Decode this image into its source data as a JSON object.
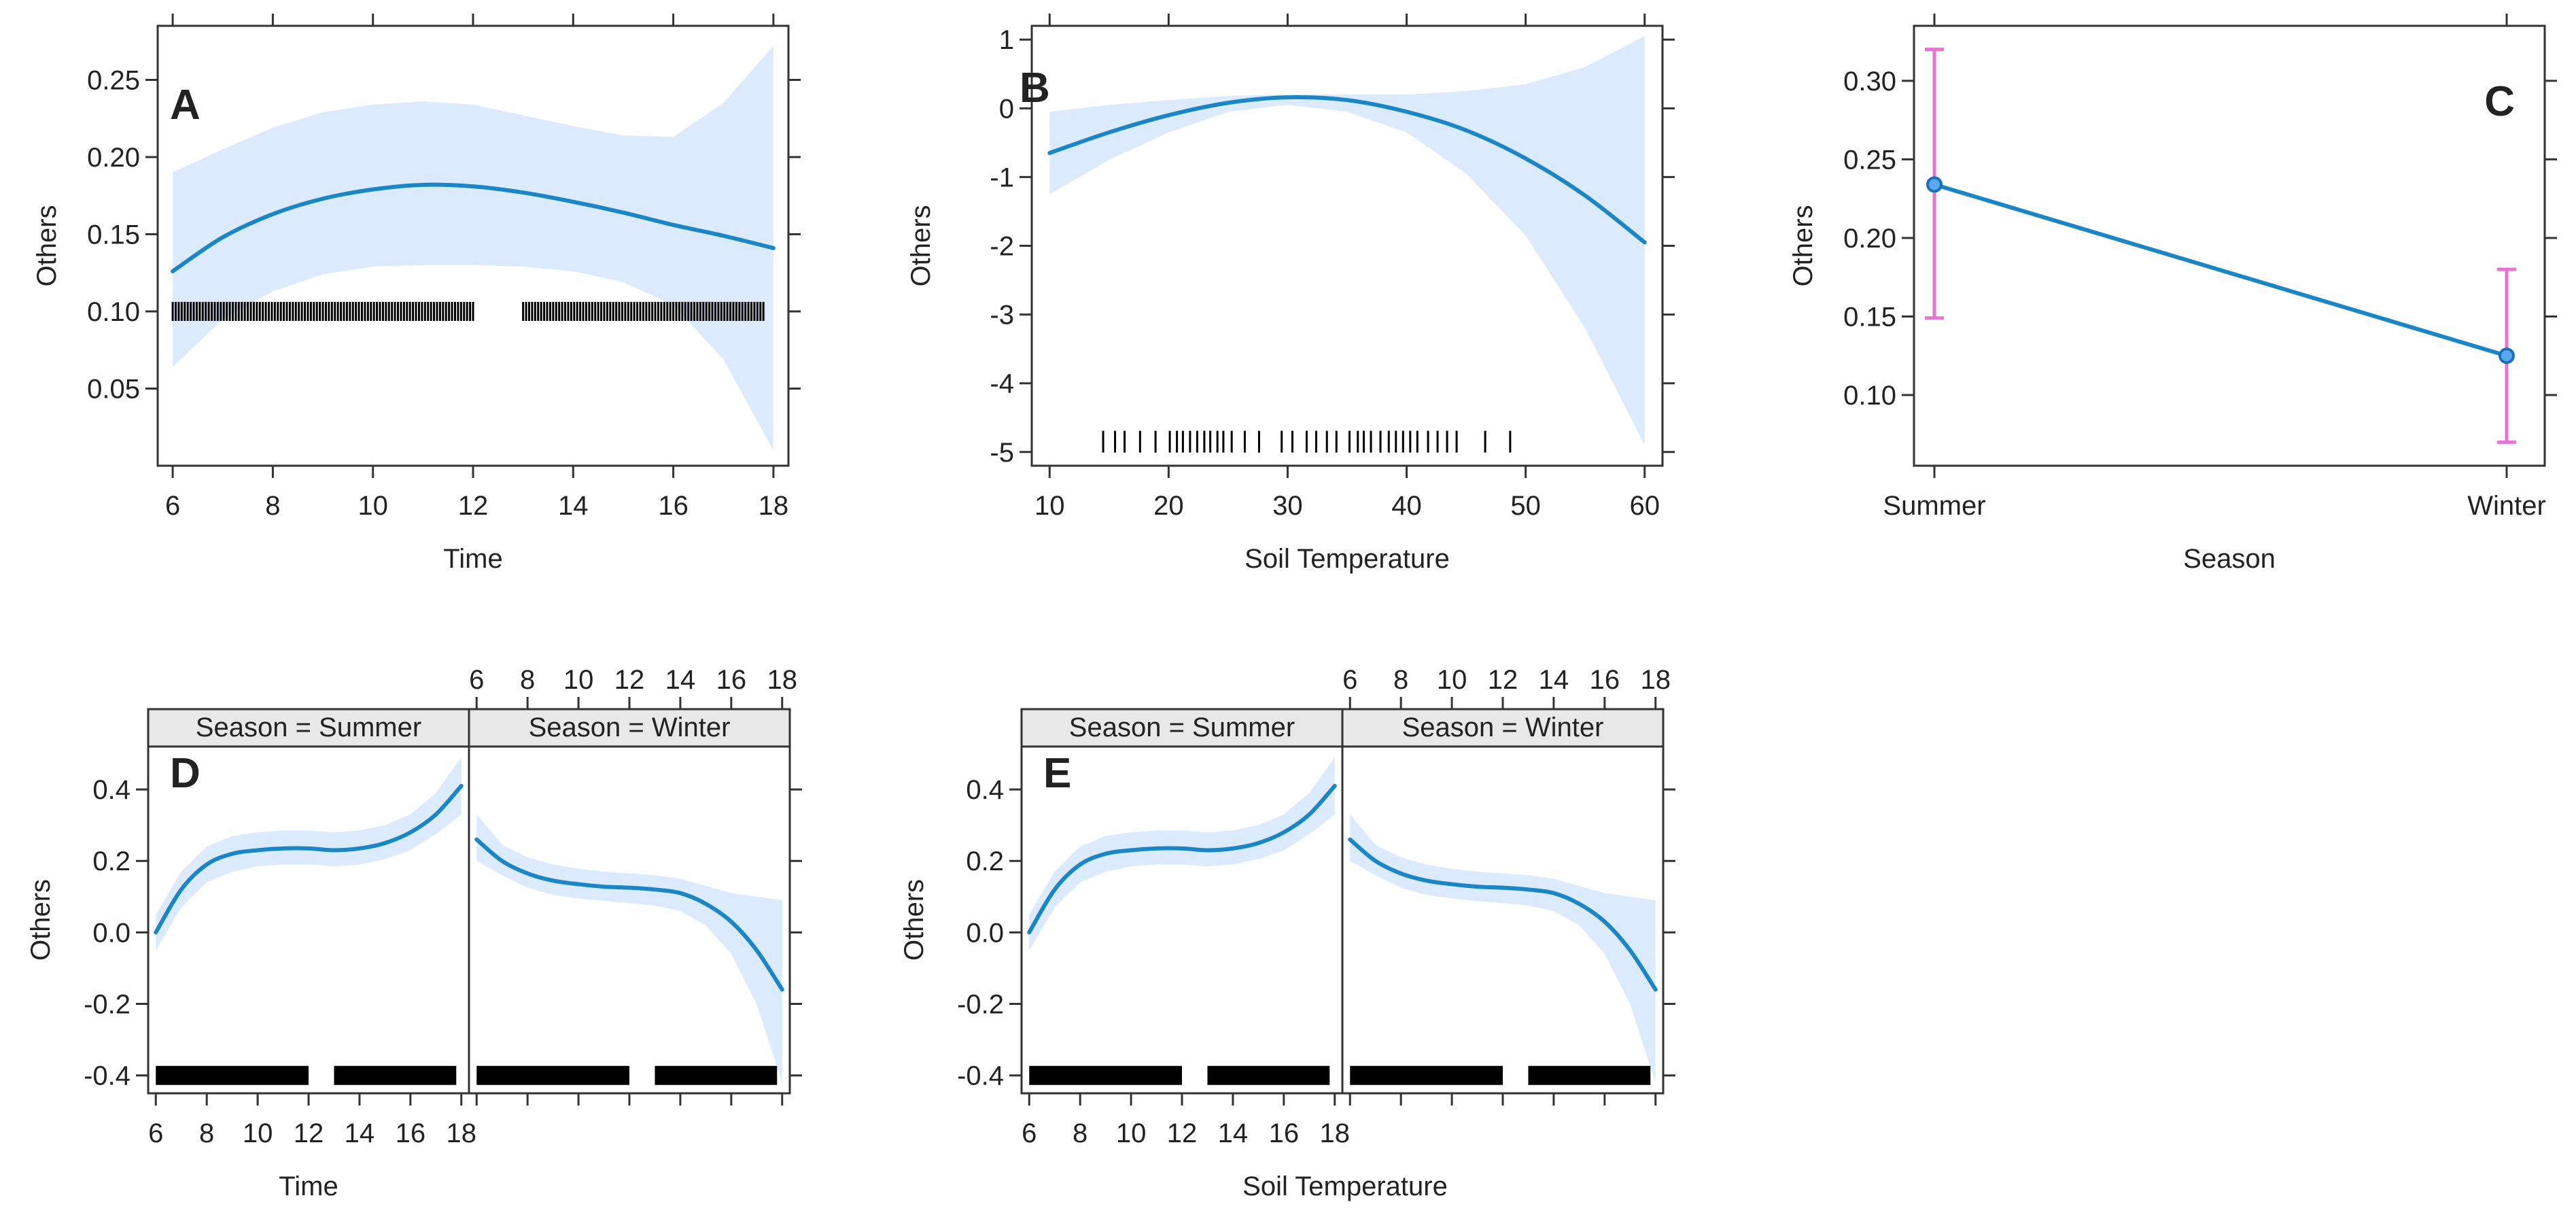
{
  "chart_data": [
    {
      "id": "A",
      "panel_label": "A",
      "type": "line",
      "xlabel": "Time",
      "ylabel": "Others",
      "xlim": [
        5.7,
        18.3
      ],
      "ylim": [
        0.0,
        0.285
      ],
      "xticks": [
        6,
        8,
        10,
        12,
        14,
        16,
        18
      ],
      "yticks": [
        0.05,
        0.1,
        0.15,
        0.2,
        0.25
      ],
      "ytick_labels": [
        "0.05",
        "0.10",
        "0.15",
        "0.20",
        "0.25"
      ],
      "x": [
        6,
        7,
        8,
        9,
        10,
        11,
        12,
        13,
        14,
        15,
        16,
        17,
        18
      ],
      "y": [
        0.126,
        0.148,
        0.163,
        0.173,
        0.179,
        0.182,
        0.181,
        0.177,
        0.171,
        0.164,
        0.156,
        0.149,
        0.141
      ],
      "lower": [
        0.064,
        0.095,
        0.113,
        0.124,
        0.129,
        0.13,
        0.13,
        0.129,
        0.126,
        0.119,
        0.104,
        0.069,
        0.01
      ],
      "upper": [
        0.19,
        0.205,
        0.219,
        0.229,
        0.234,
        0.236,
        0.234,
        0.227,
        0.22,
        0.214,
        0.213,
        0.235,
        0.272
      ],
      "rug_segments": [
        [
          6.0,
          12.0,
          0.1
        ],
        [
          13.0,
          17.8,
          0.1
        ]
      ]
    },
    {
      "id": "B",
      "panel_label": "B",
      "type": "line",
      "xlabel": "Soil Temperature",
      "ylabel": "Others",
      "xlim": [
        8.5,
        61.5
      ],
      "ylim": [
        -5.2,
        1.2
      ],
      "xticks": [
        10,
        20,
        30,
        40,
        50,
        60
      ],
      "yticks": [
        -5,
        -4,
        -3,
        -2,
        -1,
        0,
        1
      ],
      "ytick_labels": [
        "-5",
        "-4",
        "-3",
        "-2",
        "-1",
        "0",
        "1"
      ],
      "x": [
        10,
        15,
        20,
        25,
        30,
        35,
        40,
        45,
        50,
        55,
        60
      ],
      "y": [
        -0.65,
        -0.35,
        -0.1,
        0.08,
        0.16,
        0.12,
        -0.05,
        -0.32,
        -0.73,
        -1.27,
        -1.95
      ],
      "lower": [
        -1.25,
        -0.75,
        -0.35,
        -0.05,
        0.05,
        -0.05,
        -0.35,
        -0.95,
        -1.85,
        -3.2,
        -4.9
      ],
      "upper": [
        -0.05,
        0.05,
        0.12,
        0.18,
        0.2,
        0.2,
        0.2,
        0.25,
        0.35,
        0.6,
        1.05
      ],
      "rug": [
        14.5,
        15.5,
        16.3,
        17.6,
        18.9,
        20.1,
        20.7,
        21.2,
        21.8,
        22.4,
        23.0,
        23.5,
        24.1,
        24.6,
        25.3,
        26.4,
        27.6,
        29.5,
        30.4,
        31.6,
        32.4,
        33.3,
        34.1,
        35.2,
        35.9,
        36.4,
        37.0,
        37.8,
        38.5,
        39.1,
        39.7,
        40.3,
        40.9,
        41.8,
        42.6,
        43.4,
        44.2,
        46.6,
        48.7
      ],
      "rug_y": -4.85
    },
    {
      "id": "C",
      "panel_label": "C",
      "type": "line",
      "xlabel": "Season",
      "ylabel": "Others",
      "categories": [
        "Summer",
        "Winter"
      ],
      "values": [
        0.234,
        0.125
      ],
      "lower": [
        0.149,
        0.07
      ],
      "upper": [
        0.32,
        0.18
      ],
      "ylim": [
        0.055,
        0.335
      ],
      "yticks": [
        0.1,
        0.15,
        0.2,
        0.25,
        0.3
      ],
      "ytick_labels": [
        "0.10",
        "0.15",
        "0.20",
        "0.25",
        "0.30"
      ]
    },
    {
      "id": "D",
      "panel_label": "D",
      "type": "line",
      "xlabel": "Time",
      "ylabel": "Others",
      "xlim": [
        5.7,
        18.3
      ],
      "ylim": [
        -0.45,
        0.52
      ],
      "xticks": [
        6,
        8,
        10,
        12,
        14,
        16,
        18
      ],
      "yticks": [
        -0.4,
        -0.2,
        0.0,
        0.2,
        0.4
      ],
      "ytick_labels": [
        "-0.4",
        "-0.2",
        "0.0",
        "0.2",
        "0.4"
      ],
      "panels": [
        {
          "strip": "Season = Summer",
          "x": [
            6,
            7,
            8,
            9,
            10,
            11,
            12,
            13,
            14,
            15,
            16,
            17,
            18
          ],
          "y": [
            0.0,
            0.12,
            0.19,
            0.22,
            0.23,
            0.235,
            0.235,
            0.23,
            0.235,
            0.25,
            0.28,
            0.33,
            0.41
          ],
          "lower": [
            -0.05,
            0.07,
            0.14,
            0.17,
            0.185,
            0.19,
            0.19,
            0.185,
            0.19,
            0.205,
            0.23,
            0.275,
            0.33
          ],
          "upper": [
            0.05,
            0.17,
            0.24,
            0.27,
            0.28,
            0.285,
            0.285,
            0.28,
            0.285,
            0.3,
            0.33,
            0.39,
            0.49
          ],
          "rug_segments": [
            [
              6.0,
              12.0,
              -0.4
            ],
            [
              13.0,
              17.8,
              -0.4
            ]
          ]
        },
        {
          "strip": "Season = Winter",
          "x": [
            6,
            7,
            8,
            9,
            10,
            11,
            12,
            13,
            14,
            15,
            16,
            17,
            18
          ],
          "y": [
            0.26,
            0.2,
            0.165,
            0.145,
            0.135,
            0.128,
            0.125,
            0.12,
            0.11,
            0.08,
            0.03,
            -0.05,
            -0.16
          ],
          "lower": [
            0.2,
            0.16,
            0.125,
            0.105,
            0.095,
            0.088,
            0.082,
            0.075,
            0.06,
            0.02,
            -0.06,
            -0.2,
            -0.42
          ],
          "upper": [
            0.33,
            0.245,
            0.21,
            0.19,
            0.178,
            0.17,
            0.165,
            0.16,
            0.15,
            0.13,
            0.11,
            0.1,
            0.09
          ],
          "rug_segments": [
            [
              6.0,
              12.0,
              -0.4
            ],
            [
              13.0,
              17.8,
              -0.4
            ]
          ]
        }
      ]
    },
    {
      "id": "E",
      "panel_label": "E",
      "type": "line",
      "xlabel": "Soil Temperature",
      "ylabel": "Others",
      "xlim": [
        5.7,
        18.3
      ],
      "ylim": [
        -0.45,
        0.52
      ],
      "xticks": [
        6,
        8,
        10,
        12,
        14,
        16,
        18
      ],
      "yticks": [
        -0.4,
        -0.2,
        0.0,
        0.2,
        0.4
      ],
      "ytick_labels": [
        "-0.4",
        "-0.2",
        "0.0",
        "0.2",
        "0.4"
      ],
      "panels": [
        {
          "strip": "Season = Summer",
          "x": [
            6,
            7,
            8,
            9,
            10,
            11,
            12,
            13,
            14,
            15,
            16,
            17,
            18
          ],
          "y": [
            0.0,
            0.12,
            0.19,
            0.22,
            0.23,
            0.235,
            0.235,
            0.23,
            0.235,
            0.25,
            0.28,
            0.33,
            0.41
          ],
          "lower": [
            -0.05,
            0.07,
            0.14,
            0.17,
            0.185,
            0.19,
            0.19,
            0.185,
            0.19,
            0.205,
            0.23,
            0.275,
            0.33
          ],
          "upper": [
            0.05,
            0.17,
            0.24,
            0.27,
            0.28,
            0.285,
            0.285,
            0.28,
            0.285,
            0.3,
            0.33,
            0.39,
            0.49
          ],
          "rug_segments": [
            [
              6.0,
              12.0,
              -0.4
            ],
            [
              13.0,
              17.8,
              -0.4
            ]
          ]
        },
        {
          "strip": "Season = Winter",
          "x": [
            6,
            7,
            8,
            9,
            10,
            11,
            12,
            13,
            14,
            15,
            16,
            17,
            18
          ],
          "y": [
            0.26,
            0.2,
            0.165,
            0.145,
            0.135,
            0.128,
            0.125,
            0.12,
            0.11,
            0.08,
            0.03,
            -0.05,
            -0.16
          ],
          "lower": [
            0.2,
            0.16,
            0.125,
            0.105,
            0.095,
            0.088,
            0.082,
            0.075,
            0.06,
            0.02,
            -0.06,
            -0.2,
            -0.42
          ],
          "upper": [
            0.33,
            0.245,
            0.21,
            0.19,
            0.178,
            0.17,
            0.165,
            0.16,
            0.15,
            0.13,
            0.11,
            0.1,
            0.09
          ],
          "rug_segments": [
            [
              6.0,
              12.0,
              -0.4
            ],
            [
              13.0,
              17.8,
              -0.4
            ]
          ]
        }
      ]
    }
  ]
}
